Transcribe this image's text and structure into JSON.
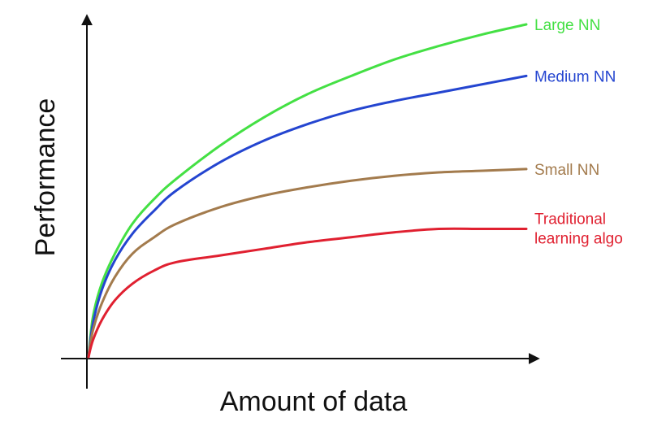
{
  "chart_data": {
    "type": "line",
    "xlabel": "Amount of data",
    "ylabel": "Performance",
    "xlim": [
      0,
      100
    ],
    "ylim": [
      0,
      100
    ],
    "grid": false,
    "legend": "inline-right",
    "series": [
      {
        "name": "Large NN",
        "color": "#44e044",
        "label_lines": [
          "Large NN"
        ],
        "x": [
          0,
          1,
          3,
          6,
          10,
          15,
          20,
          30,
          40,
          50,
          60,
          70,
          80,
          90,
          100
        ],
        "y": [
          0,
          12,
          22,
          31,
          40,
          47.5,
          53.5,
          63.5,
          72,
          79,
          84.5,
          89.5,
          93.5,
          97,
          100
        ]
      },
      {
        "name": "Medium NN",
        "color": "#2445d0",
        "label_lines": [
          "Medium NN"
        ],
        "x": [
          0,
          1,
          3,
          6,
          10,
          15,
          20,
          30,
          40,
          50,
          60,
          70,
          80,
          90,
          100
        ],
        "y": [
          0,
          10,
          20,
          29,
          37,
          44,
          50,
          58.5,
          65,
          70,
          74,
          77,
          79.5,
          82,
          84.5
        ]
      },
      {
        "name": "Small NN",
        "color": "#a37b4d",
        "label_lines": [
          "Small NN"
        ],
        "x": [
          0,
          1,
          3,
          6,
          10,
          15,
          20,
          30,
          40,
          50,
          60,
          70,
          80,
          90,
          100
        ],
        "y": [
          0,
          8,
          16,
          24,
          31,
          36,
          40,
          45,
          48.5,
          51,
          53,
          54.5,
          55.5,
          56,
          56.5
        ]
      },
      {
        "name": "Traditional learning algo",
        "color": "#e02030",
        "label_lines": [
          "Traditional",
          "learning algo"
        ],
        "x": [
          0,
          1,
          3,
          6,
          10,
          15,
          20,
          30,
          40,
          50,
          60,
          70,
          80,
          90,
          100
        ],
        "y": [
          0,
          5,
          11,
          17,
          22,
          26,
          28.5,
          30.5,
          32.5,
          34.5,
          36,
          37.5,
          38.5,
          38.5,
          38.5
        ]
      }
    ]
  }
}
